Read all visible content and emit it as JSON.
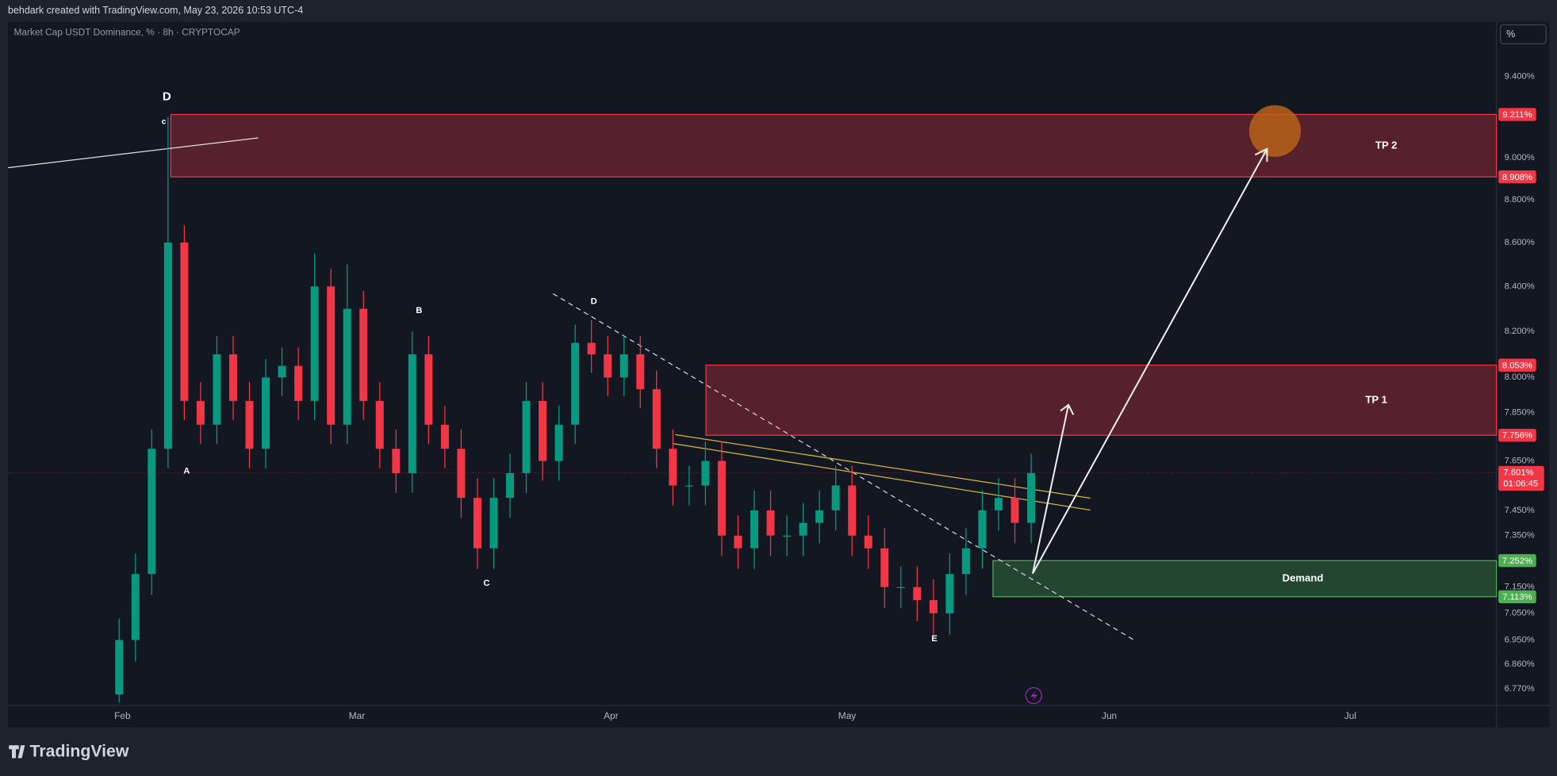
{
  "header": {
    "credit": "behdark created with TradingView.com, May 23, 2026 10:53 UTC-4",
    "symbol": "Market Cap USDT Dominance, % · 8h · CRYPTOCAP",
    "scale_button": "%",
    "brand": "TradingView"
  },
  "chart_data": {
    "type": "candlestick",
    "log": true,
    "grid": false,
    "up_color": "#089981",
    "down_color": "#f23645",
    "categories": [
      null,
      null,
      null,
      null,
      null,
      null,
      null,
      null,
      null,
      null,
      null,
      null,
      null,
      null,
      null,
      null,
      null,
      null,
      null,
      null,
      null,
      null,
      null,
      null,
      null,
      null,
      null,
      null,
      null,
      null,
      null,
      null,
      null,
      null,
      null,
      null,
      null,
      null,
      null,
      null,
      null,
      null,
      null,
      null,
      null,
      null,
      null,
      null,
      null,
      null,
      null,
      null,
      null,
      null,
      null,
      null,
      null
    ],
    "open": [
      6.75,
      6.95,
      7.2,
      7.7,
      8.6,
      7.9,
      7.8,
      8.1,
      7.9,
      7.7,
      8.0,
      8.05,
      7.9,
      8.4,
      7.8,
      8.3,
      7.9,
      7.7,
      7.6,
      8.1,
      7.8,
      7.7,
      7.5,
      7.3,
      7.5,
      7.6,
      7.9,
      7.65,
      7.8,
      8.15,
      8.1,
      8.0,
      8.1,
      7.95,
      7.7,
      7.55,
      7.55,
      7.65,
      7.35,
      7.3,
      7.45,
      7.35,
      7.35,
      7.4,
      7.45,
      7.55,
      7.35,
      7.3,
      7.15,
      7.15,
      7.1,
      7.05,
      7.2,
      7.3,
      7.45,
      7.5,
      7.4
    ],
    "high": [
      7.03,
      7.28,
      7.78,
      9.2,
      8.68,
      7.98,
      8.18,
      8.18,
      7.98,
      8.08,
      8.13,
      8.13,
      8.55,
      8.48,
      8.5,
      8.38,
      7.98,
      7.78,
      8.2,
      8.18,
      7.88,
      7.78,
      7.58,
      7.58,
      7.68,
      7.98,
      7.98,
      7.88,
      8.23,
      8.25,
      8.18,
      8.18,
      8.18,
      8.03,
      7.78,
      7.63,
      7.73,
      7.73,
      7.43,
      7.53,
      7.53,
      7.43,
      7.48,
      7.53,
      7.63,
      7.63,
      7.43,
      7.38,
      7.23,
      7.23,
      7.18,
      7.28,
      7.38,
      7.53,
      7.58,
      7.58,
      7.68
    ],
    "low": [
      6.72,
      6.87,
      7.12,
      7.62,
      7.82,
      7.72,
      7.72,
      7.82,
      7.62,
      7.62,
      7.92,
      7.82,
      7.82,
      7.72,
      7.72,
      7.82,
      7.62,
      7.52,
      7.52,
      7.72,
      7.62,
      7.42,
      7.22,
      7.22,
      7.42,
      7.52,
      7.57,
      7.57,
      7.72,
      8.02,
      7.92,
      7.92,
      7.87,
      7.62,
      7.47,
      7.47,
      7.47,
      7.27,
      7.22,
      7.22,
      7.27,
      7.27,
      7.27,
      7.32,
      7.37,
      7.27,
      7.22,
      7.07,
      7.07,
      7.02,
      6.97,
      6.97,
      7.12,
      7.22,
      7.37,
      7.32,
      7.32
    ],
    "close": [
      6.95,
      7.2,
      7.7,
      8.6,
      7.9,
      7.8,
      8.1,
      7.9,
      7.7,
      8.0,
      8.05,
      7.9,
      8.4,
      7.8,
      8.3,
      7.9,
      7.7,
      7.6,
      8.1,
      7.8,
      7.7,
      7.5,
      7.3,
      7.5,
      7.6,
      7.9,
      7.65,
      7.8,
      8.15,
      8.1,
      8.0,
      8.1,
      7.95,
      7.7,
      7.55,
      7.55,
      7.65,
      7.35,
      7.3,
      7.45,
      7.35,
      7.35,
      7.4,
      7.45,
      7.55,
      7.35,
      7.3,
      7.15,
      7.15,
      7.1,
      7.05,
      7.2,
      7.3,
      7.45,
      7.5,
      7.4,
      7.601
    ],
    "xlim": [
      -6.83,
      84.57
    ],
    "xticks": [
      {
        "value": 0.2,
        "label": "Feb"
      },
      {
        "value": 14.6,
        "label": "Mar"
      },
      {
        "value": 30.2,
        "label": "Apr"
      },
      {
        "value": 44.7,
        "label": "May"
      },
      {
        "value": 60.8,
        "label": "Jun"
      },
      {
        "value": 75.6,
        "label": "Jul"
      }
    ],
    "ylim": [
      6.71,
      9.68
    ],
    "yticks": [
      {
        "value": 9.4,
        "label": "9.400%"
      },
      {
        "value": 9.0,
        "label": "9.000%"
      },
      {
        "value": 8.8,
        "label": "8.800%"
      },
      {
        "value": 8.6,
        "label": "8.600%"
      },
      {
        "value": 8.4,
        "label": "8.400%"
      },
      {
        "value": 8.2,
        "label": "8.200%"
      },
      {
        "value": 8.0,
        "label": "8.000%"
      },
      {
        "value": 7.85,
        "label": "7.850%"
      },
      {
        "value": 7.65,
        "label": "7.650%"
      },
      {
        "value": 7.45,
        "label": "7.450%"
      },
      {
        "value": 7.35,
        "label": "7.350%"
      },
      {
        "value": 7.15,
        "label": "7.150%"
      },
      {
        "value": 7.05,
        "label": "7.050%"
      },
      {
        "value": 6.95,
        "label": "6.950%"
      },
      {
        "value": 6.86,
        "label": "6.860%"
      },
      {
        "value": 6.77,
        "label": "6.770%"
      }
    ],
    "zones": [
      {
        "label": "TP 2",
        "color": "#f23645",
        "top": {
          "value": 9.211,
          "label": "9.211%"
        },
        "bottom": {
          "value": 8.908,
          "label": "8.908%"
        }
      },
      {
        "label": "TP 1",
        "color": "#f23645",
        "top": {
          "value": 8.053,
          "label": "8.053%"
        },
        "bottom": {
          "value": 7.756,
          "label": "7.756%"
        }
      },
      {
        "label": "Demand",
        "color": "#4caf50",
        "top": {
          "value": 7.252,
          "label": "7.252%"
        },
        "bottom": {
          "value": 7.113,
          "label": "7.113%"
        }
      }
    ],
    "last_price": {
      "value": 7.601,
      "label": "7.601%",
      "countdown": "01:06:45"
    },
    "annotations": [
      "D",
      "c",
      "A",
      "B",
      "C",
      "D",
      "E"
    ]
  }
}
